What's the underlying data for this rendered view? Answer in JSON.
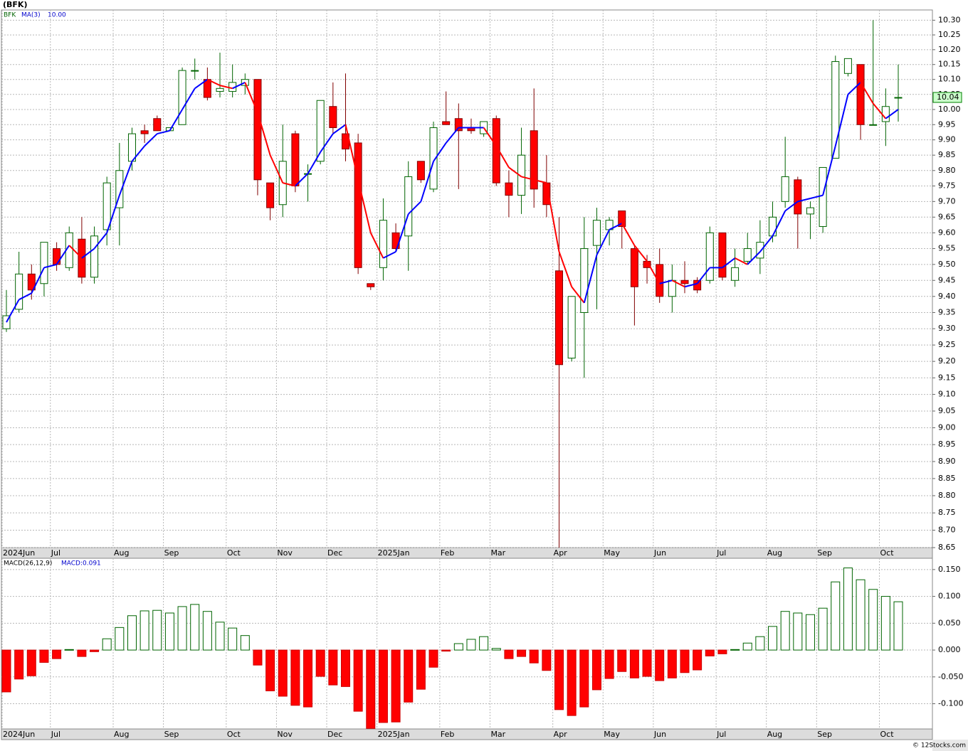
{
  "chart_data": [
    {
      "type": "candlestick",
      "title": "(BFK)",
      "symbol": "BFK",
      "categories": [
        "2024Jun",
        null,
        null,
        null,
        "Jul",
        null,
        null,
        null,
        null,
        "Aug",
        null,
        null,
        null,
        "Sep",
        null,
        null,
        null,
        null,
        "Oct",
        null,
        null,
        null,
        "Nov",
        null,
        null,
        null,
        "Dec",
        null,
        null,
        null,
        "2025Jan",
        null,
        null,
        null,
        null,
        "Feb",
        null,
        null,
        null,
        "Mar",
        null,
        null,
        null,
        null,
        "Apr",
        null,
        null,
        null,
        "May",
        null,
        null,
        null,
        "Jun",
        null,
        null,
        null,
        null,
        "Jul",
        null,
        null,
        null,
        "Aug",
        null,
        null,
        null,
        "Sep",
        null,
        null,
        null,
        null,
        "Oct",
        null
      ],
      "open": [
        9.3,
        9.36,
        9.47,
        9.44,
        9.55,
        9.49,
        9.58,
        9.46,
        9.61,
        9.68,
        9.83,
        9.93,
        9.97,
        9.93,
        9.95,
        10.13,
        10.1,
        10.06,
        10.06,
        10.08,
        10.1,
        9.76,
        9.69,
        9.92,
        9.79,
        9.83,
        10.01,
        9.92,
        9.89,
        9.44,
        9.49,
        9.6,
        9.59,
        9.83,
        9.74,
        9.96,
        9.97,
        9.94,
        9.92,
        9.97,
        9.76,
        9.72,
        9.93,
        9.76,
        9.48,
        9.21,
        9.35,
        9.56,
        9.61,
        9.67,
        9.55,
        9.51,
        9.5,
        9.4,
        9.45,
        9.45,
        9.45,
        9.6,
        9.45,
        9.51,
        9.52,
        9.59,
        9.7,
        9.77,
        9.66,
        9.62,
        9.84,
        10.12,
        10.15,
        9.95,
        9.96,
        10.04
      ],
      "high": [
        9.42,
        9.54,
        9.5,
        9.57,
        9.57,
        9.62,
        9.65,
        9.62,
        9.78,
        9.89,
        9.94,
        9.95,
        9.98,
        9.94,
        10.14,
        10.17,
        10.14,
        10.19,
        10.15,
        10.12,
        10.1,
        9.76,
        9.95,
        9.93,
        9.82,
        10.03,
        10.09,
        10.12,
        9.92,
        9.44,
        9.71,
        9.63,
        9.83,
        9.83,
        9.96,
        10.06,
        10.02,
        9.97,
        9.96,
        9.98,
        9.8,
        9.94,
        10.07,
        9.85,
        9.65,
        9.4,
        9.65,
        9.68,
        9.65,
        9.67,
        9.56,
        9.53,
        9.55,
        9.5,
        9.51,
        9.46,
        9.62,
        9.6,
        9.55,
        9.6,
        9.64,
        9.7,
        9.91,
        9.78,
        9.7,
        9.81,
        10.18,
        10.17,
        10.15,
        10.3,
        10.07,
        10.15
      ],
      "low": [
        9.29,
        9.35,
        9.39,
        9.4,
        9.48,
        9.48,
        9.44,
        9.44,
        9.56,
        9.56,
        9.8,
        9.89,
        9.93,
        9.93,
        9.95,
        10.1,
        10.03,
        10.04,
        10.04,
        10.05,
        9.72,
        9.64,
        9.65,
        9.73,
        9.7,
        9.82,
        9.92,
        9.83,
        9.47,
        9.42,
        9.45,
        9.54,
        9.48,
        9.76,
        9.73,
        9.95,
        9.74,
        9.92,
        9.91,
        9.75,
        9.65,
        9.66,
        9.68,
        9.65,
        8.65,
        9.2,
        9.15,
        9.36,
        9.56,
        9.55,
        9.31,
        9.44,
        9.38,
        9.35,
        9.41,
        9.41,
        9.44,
        9.45,
        9.43,
        9.5,
        9.47,
        9.57,
        9.68,
        9.55,
        9.58,
        9.6,
        9.84,
        10.11,
        9.9,
        9.95,
        9.88,
        9.96
      ],
      "close": [
        9.34,
        9.47,
        9.42,
        9.57,
        9.5,
        9.6,
        9.46,
        9.59,
        9.76,
        9.8,
        9.92,
        9.92,
        9.93,
        9.94,
        10.13,
        10.13,
        10.04,
        10.07,
        10.09,
        10.1,
        9.77,
        9.68,
        9.83,
        9.75,
        9.79,
        10.03,
        9.94,
        9.87,
        9.49,
        9.43,
        9.64,
        9.55,
        9.78,
        9.77,
        9.94,
        9.95,
        9.93,
        9.93,
        9.96,
        9.76,
        9.72,
        9.85,
        9.74,
        9.69,
        9.19,
        9.4,
        9.55,
        9.64,
        9.64,
        9.62,
        9.43,
        9.49,
        9.4,
        9.45,
        9.44,
        9.42,
        9.6,
        9.46,
        9.49,
        9.55,
        9.57,
        9.65,
        9.78,
        9.66,
        9.68,
        9.81,
        10.16,
        10.17,
        9.95,
        9.95,
        10.01,
        10.04
      ],
      "up_color": "#006400",
      "down_color": "#ff0000",
      "ma": {
        "name": "MA(3)",
        "value_label": "10.00",
        "rising_color": "#0000ff",
        "falling_color": "#ff0000",
        "values": [
          9.32,
          9.39,
          9.41,
          9.49,
          9.5,
          9.56,
          9.52,
          9.55,
          9.6,
          9.72,
          9.83,
          9.88,
          9.92,
          9.93,
          10.0,
          10.07,
          10.1,
          10.08,
          10.07,
          10.09,
          9.99,
          9.85,
          9.76,
          9.75,
          9.79,
          9.86,
          9.92,
          9.95,
          9.77,
          9.6,
          9.52,
          9.54,
          9.66,
          9.7,
          9.83,
          9.89,
          9.94,
          9.94,
          9.94,
          9.88,
          9.81,
          9.78,
          9.77,
          9.76,
          9.54,
          9.43,
          9.38,
          9.53,
          9.61,
          9.63,
          9.56,
          9.51,
          9.44,
          9.45,
          9.43,
          9.44,
          9.49,
          9.49,
          9.52,
          9.5,
          9.54,
          9.59,
          9.67,
          9.7,
          9.71,
          9.72,
          9.88,
          10.05,
          10.09,
          10.02,
          9.97,
          10.0
        ]
      },
      "last_price": 10.04,
      "log_scale": true,
      "grid": true,
      "ylim": [
        8.65,
        10.335
      ],
      "yticks": [
        {
          "value": 10.3,
          "label": "10.30"
        },
        {
          "value": 10.25,
          "label": "10.25"
        },
        {
          "value": 10.2,
          "label": "10.20"
        },
        {
          "value": 10.15,
          "label": "10.15"
        },
        {
          "value": 10.1,
          "label": "10.10"
        },
        {
          "value": 10.05,
          "label": "10.05"
        },
        {
          "value": 10,
          "label": "10.00"
        },
        {
          "value": 9.95,
          "label": "9.95"
        },
        {
          "value": 9.9,
          "label": "9.90"
        },
        {
          "value": 9.85,
          "label": "9.85"
        },
        {
          "value": 9.8,
          "label": "9.80"
        },
        {
          "value": 9.75,
          "label": "9.75"
        },
        {
          "value": 9.7,
          "label": "9.70"
        },
        {
          "value": 9.65,
          "label": "9.65"
        },
        {
          "value": 9.6,
          "label": "9.60"
        },
        {
          "value": 9.55,
          "label": "9.55"
        },
        {
          "value": 9.5,
          "label": "9.50"
        },
        {
          "value": 9.45,
          "label": "9.45"
        },
        {
          "value": 9.4,
          "label": "9.40"
        },
        {
          "value": 9.35,
          "label": "9.35"
        },
        {
          "value": 9.3,
          "label": "9.30"
        },
        {
          "value": 9.25,
          "label": "9.25"
        },
        {
          "value": 9.2,
          "label": "9.20"
        },
        {
          "value": 9.15,
          "label": "9.15"
        },
        {
          "value": 9.1,
          "label": "9.10"
        },
        {
          "value": 9.05,
          "label": "9.05"
        },
        {
          "value": 9,
          "label": "9.00"
        },
        {
          "value": 8.95,
          "label": "8.95"
        },
        {
          "value": 8.9,
          "label": "8.90"
        },
        {
          "value": 8.85,
          "label": "8.85"
        },
        {
          "value": 8.8,
          "label": "8.80"
        },
        {
          "value": 8.75,
          "label": "8.75"
        },
        {
          "value": 8.7,
          "label": "8.70"
        },
        {
          "value": 8.65,
          "label": "8.65"
        }
      ]
    },
    {
      "type": "histogram",
      "title": "MACD(26,12,9)",
      "value_label": "MACD:0.091",
      "categories": [
        "2024Jun",
        null,
        null,
        null,
        "Jul",
        null,
        null,
        null,
        null,
        "Aug",
        null,
        null,
        null,
        "Sep",
        null,
        null,
        null,
        null,
        "Oct",
        null,
        null,
        null,
        "Nov",
        null,
        null,
        null,
        "Dec",
        null,
        null,
        null,
        "2025Jan",
        null,
        null,
        null,
        null,
        "Feb",
        null,
        null,
        null,
        "Mar",
        null,
        null,
        null,
        null,
        "Apr",
        null,
        null,
        null,
        "May",
        null,
        null,
        null,
        "Jun",
        null,
        null,
        null,
        null,
        "Jul",
        null,
        null,
        null,
        "Aug",
        null,
        null,
        null,
        "Sep",
        null,
        null,
        null,
        null,
        "Oct",
        null
      ],
      "values": [
        -0.078,
        -0.054,
        -0.048,
        -0.023,
        -0.016,
        0.001,
        -0.012,
        -0.003,
        0.021,
        0.042,
        0.064,
        0.073,
        0.074,
        0.069,
        0.081,
        0.085,
        0.072,
        0.052,
        0.041,
        0.027,
        -0.028,
        -0.076,
        -0.086,
        -0.103,
        -0.106,
        -0.049,
        -0.065,
        -0.068,
        -0.114,
        -0.146,
        -0.135,
        -0.134,
        -0.097,
        -0.073,
        -0.032,
        -0.002,
        0.012,
        0.02,
        0.025,
        0.003,
        -0.016,
        -0.012,
        -0.024,
        -0.038,
        -0.111,
        -0.122,
        -0.106,
        -0.074,
        -0.053,
        -0.04,
        -0.052,
        -0.049,
        -0.057,
        -0.052,
        -0.042,
        -0.037,
        -0.011,
        -0.007,
        0.001,
        0.013,
        0.025,
        0.044,
        0.072,
        0.069,
        0.066,
        0.078,
        0.127,
        0.153,
        0.131,
        0.113,
        0.1,
        0.09
      ],
      "positive_color": "#006400",
      "negative_color": "#ff0000",
      "grid": true,
      "ylim": [
        -0.147,
        0.171
      ],
      "yticks": [
        {
          "value": 0.15,
          "label": "0.150"
        },
        {
          "value": 0.1,
          "label": "0.100"
        },
        {
          "value": 0.05,
          "label": "0.050"
        },
        {
          "value": 0,
          "label": "0.000"
        },
        {
          "value": -0.05,
          "label": "-0.050"
        },
        {
          "value": -0.1,
          "label": "-0.100"
        }
      ]
    }
  ],
  "footer": "© 12Stocks.com"
}
